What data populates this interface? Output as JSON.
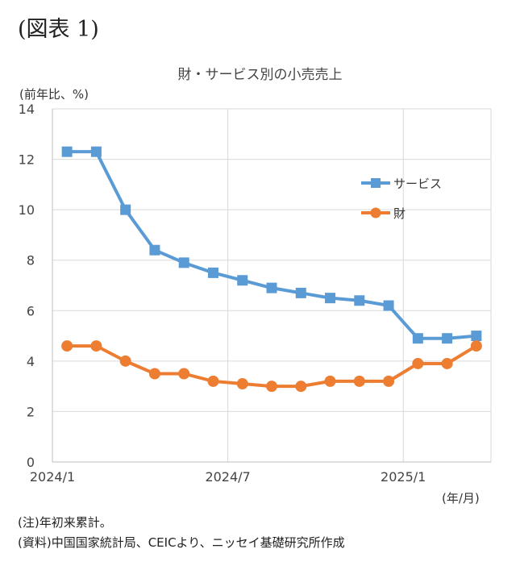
{
  "figure_label": "(図表 1)",
  "chart_data": {
    "type": "line",
    "title": "財・サービス別の小売売上",
    "ylabel": "(前年比、%)",
    "xlabel": "(年/月)",
    "ylim": [
      0,
      14
    ],
    "yticks": [
      "0",
      "2",
      "4",
      "6",
      "8",
      "10",
      "12",
      "14"
    ],
    "xtick_labels": [
      {
        "index": 0,
        "label": "2024/1"
      },
      {
        "index": 6,
        "label": "2024/7"
      },
      {
        "index": 12,
        "label": "2025/1"
      }
    ],
    "categories": [
      "2024/1",
      "2024/2",
      "2024/3",
      "2024/4",
      "2024/5",
      "2024/6",
      "2024/7",
      "2024/8",
      "2024/9",
      "2024/10",
      "2024/11",
      "2024/12",
      "2025/1",
      "2025/2",
      "2025/3"
    ],
    "grid": true,
    "legend_position": "right",
    "series": [
      {
        "name": "サービス",
        "color": "#5b9bd5",
        "marker": "square",
        "x": [
          0,
          1,
          2,
          3,
          4,
          5,
          6,
          7,
          8,
          9,
          10,
          11,
          12,
          13,
          14
        ],
        "values": [
          12.3,
          12.3,
          10.0,
          8.4,
          7.9,
          7.5,
          7.2,
          6.9,
          6.7,
          6.5,
          6.4,
          6.2,
          4.9,
          4.9,
          5.0
        ]
      },
      {
        "name": "財",
        "color": "#ed7d31",
        "marker": "circle",
        "x": [
          0,
          1,
          2,
          3,
          4,
          5,
          6,
          7,
          8,
          9,
          10,
          11,
          12,
          13,
          14
        ],
        "values": [
          4.6,
          4.6,
          4.0,
          3.5,
          3.5,
          3.2,
          3.1,
          3.0,
          3.0,
          3.2,
          3.2,
          3.2,
          3.9,
          3.9,
          4.6
        ]
      }
    ]
  },
  "notes": {
    "note1": "(注)年初来累計。",
    "note2": "(資料)中国国家統計局、CEICより、ニッセイ基礎研究所作成"
  }
}
